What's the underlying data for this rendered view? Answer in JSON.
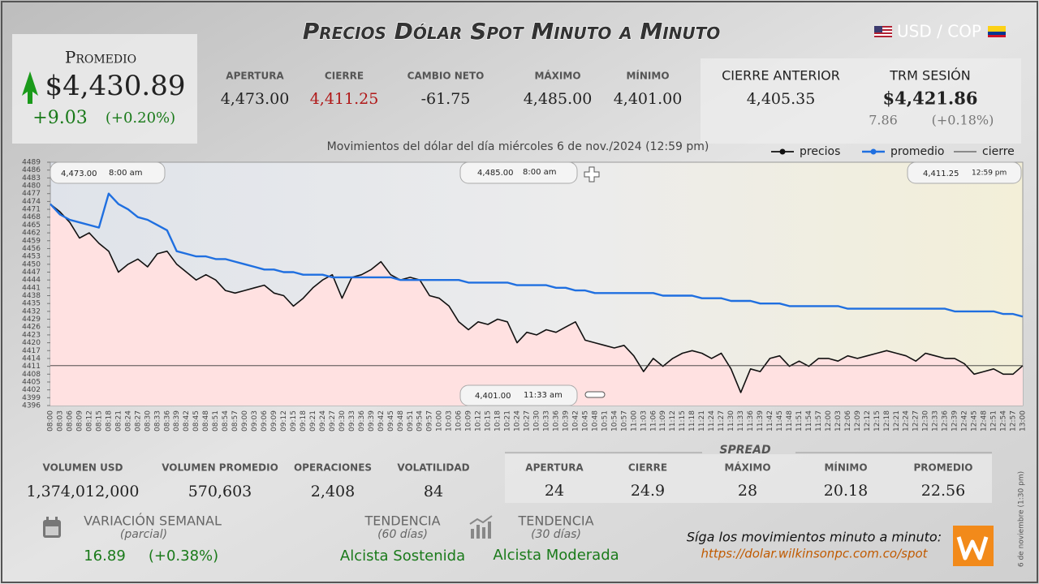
{
  "header": {
    "title": "Precios Dólar Spot Minuto a Minuto",
    "pair": "USD / COP"
  },
  "promedio": {
    "label": "Promedio",
    "value": "$4,430.89",
    "change": "+9.03",
    "change_pct": "(+0.20%)"
  },
  "stats": [
    {
      "label": "APERTURA",
      "value": "4,473.00"
    },
    {
      "label": "CIERRE",
      "value": "4,411.25"
    },
    {
      "label": "CAMBIO NETO",
      "value": "-61.75"
    },
    {
      "label": "MÁXIMO",
      "value": "4,485.00"
    },
    {
      "label": "MÍNIMO",
      "value": "4,401.00"
    }
  ],
  "previous_close": {
    "label": "CIERRE ANTERIOR",
    "value": "4,405.35"
  },
  "trm": {
    "label": "TRM SESIÓN",
    "value": "$4,421.86",
    "change": "7.86",
    "change_pct": "(+0.18%)"
  },
  "volume": [
    {
      "label": "VOLUMEN USD",
      "value": "1,374,012,000"
    },
    {
      "label": "VOLUMEN PROMEDIO",
      "value": "570,603"
    },
    {
      "label": "OPERACIONES",
      "value": "2,408"
    },
    {
      "label": "VOLATILIDAD",
      "value": "84"
    }
  ],
  "spread": {
    "title": "SPREAD",
    "items": [
      {
        "label": "APERTURA",
        "value": "24"
      },
      {
        "label": "CIERRE",
        "value": "24.9"
      },
      {
        "label": "MÁXIMO",
        "value": "28"
      },
      {
        "label": "MÍNIMO",
        "value": "20.18"
      },
      {
        "label": "PROMEDIO",
        "value": "22.56"
      }
    ]
  },
  "weekly": {
    "label": "VARIACIÓN SEMANAL",
    "sub": "(parcial)",
    "value": "16.89",
    "pct": "(+0.38%)"
  },
  "trend60": {
    "label": "TENDENCIA",
    "sub": "(60 días)",
    "value": "Alcista Sostenida"
  },
  "trend30": {
    "label": "TENDENCIA",
    "sub": "(30 días)",
    "value": "Alcista Moderada"
  },
  "footer": {
    "cta": "Síga los movimientos minuto a minuto:",
    "url": "https://dolar.wilkinsonpc.com.co/spot",
    "side": "6 de noviembre (1:30 pm)"
  },
  "chart_data": {
    "type": "line",
    "subtitle": "Movimientos del dólar del día miércoles 6 de nov./2024 (12:59 pm)",
    "categories": [
      "08:00",
      "08:03",
      "08:06",
      "08:09",
      "08:12",
      "08:15",
      "08:18",
      "08:21",
      "08:24",
      "08:27",
      "08:30",
      "08:33",
      "08:36",
      "08:39",
      "08:42",
      "08:45",
      "08:48",
      "08:51",
      "08:54",
      "08:57",
      "09:00",
      "09:03",
      "09:06",
      "09:09",
      "09:12",
      "09:15",
      "09:18",
      "09:21",
      "09:24",
      "09:27",
      "09:30",
      "09:33",
      "09:36",
      "09:39",
      "09:42",
      "09:45",
      "09:48",
      "09:51",
      "09:54",
      "09:57",
      "10:00",
      "10:03",
      "10:06",
      "10:09",
      "10:12",
      "10:15",
      "10:18",
      "10:21",
      "10:24",
      "10:27",
      "10:30",
      "10:33",
      "10:36",
      "10:39",
      "10:42",
      "10:45",
      "10:48",
      "10:51",
      "10:54",
      "10:57",
      "11:00",
      "11:03",
      "11:06",
      "11:09",
      "11:12",
      "11:15",
      "11:18",
      "11:21",
      "11:24",
      "11:27",
      "11:30",
      "11:33",
      "11:36",
      "11:39",
      "11:42",
      "11:45",
      "11:48",
      "11:51",
      "11:54",
      "11:57",
      "12:00",
      "12:03",
      "12:06",
      "12:09",
      "12:12",
      "12:15",
      "12:18",
      "12:21",
      "12:24",
      "12:27",
      "12:30",
      "12:33",
      "12:36",
      "12:39",
      "12:42",
      "12:45",
      "12:48",
      "12:51",
      "12:54",
      "12:57",
      "13:00"
    ],
    "series": [
      {
        "name": "precios",
        "color": "#111111",
        "values": [
          4473,
          4470,
          4466,
          4460,
          4462,
          4458,
          4455,
          4447,
          4450,
          4452,
          4449,
          4454,
          4455,
          4450,
          4447,
          4444,
          4446,
          4444,
          4440,
          4439,
          4440,
          4441,
          4442,
          4439,
          4438,
          4434,
          4437,
          4441,
          4444,
          4446,
          4437,
          4445,
          4446,
          4448,
          4451,
          4446,
          4444,
          4445,
          4444,
          4438,
          4437,
          4434,
          4428,
          4425,
          4428,
          4427,
          4429,
          4428,
          4420,
          4424,
          4423,
          4425,
          4424,
          4426,
          4428,
          4421,
          4420,
          4419,
          4418,
          4419,
          4415,
          4409,
          4414,
          4411,
          4414,
          4416,
          4417,
          4416,
          4414,
          4416,
          4410,
          4401,
          4410,
          4409,
          4414,
          4415,
          4411,
          4413,
          4411,
          4414,
          4414,
          4413,
          4415,
          4414,
          4415,
          4416,
          4417,
          4416,
          4415,
          4413,
          4416,
          4415,
          4414,
          4414,
          4412,
          4408,
          4409,
          4410,
          4408,
          4408,
          4411.25
        ]
      },
      {
        "name": "promedio",
        "color": "#1f6fe0",
        "values": [
          4473,
          4469,
          4467,
          4466,
          4465,
          4464,
          4477,
          4473,
          4471,
          4468,
          4467,
          4465,
          4463,
          4455,
          4454,
          4453,
          4453,
          4452,
          4452,
          4451,
          4450,
          4449,
          4448,
          4448,
          4447,
          4447,
          4446,
          4446,
          4446,
          4445,
          4445,
          4445,
          4445,
          4445,
          4445,
          4445,
          4444,
          4444,
          4444,
          4444,
          4444,
          4444,
          4444,
          4443,
          4443,
          4443,
          4443,
          4443,
          4442,
          4442,
          4442,
          4442,
          4441,
          4441,
          4440,
          4440,
          4439,
          4439,
          4439,
          4439,
          4439,
          4439,
          4439,
          4438,
          4438,
          4438,
          4438,
          4437,
          4437,
          4437,
          4436,
          4436,
          4436,
          4435,
          4435,
          4435,
          4434,
          4434,
          4434,
          4434,
          4434,
          4434,
          4433,
          4433,
          4433,
          4433,
          4433,
          4433,
          4433,
          4433,
          4433,
          4433,
          4433,
          4432,
          4432,
          4432,
          4432,
          4432,
          4431,
          4431,
          4430
        ]
      }
    ],
    "reference_line": {
      "name": "cierre",
      "value": 4411.25,
      "color": "#333333"
    },
    "ylim": [
      4396,
      4489
    ],
    "yticks": [
      4396,
      4399,
      4402,
      4405,
      4408,
      4411,
      4414,
      4417,
      4420,
      4423,
      4426,
      4429,
      4432,
      4435,
      4438,
      4441,
      4444,
      4447,
      4450,
      4453,
      4456,
      4459,
      4462,
      4465,
      4468,
      4471,
      4474,
      4477,
      4480,
      4483,
      4486,
      4489
    ],
    "area_color": "#ffe1e1",
    "annotations": [
      {
        "value_label": "4,473.00",
        "time": "8:00 am"
      },
      {
        "value_label": "4,485.00",
        "time": "8:00 am"
      },
      {
        "value_label": "4,411.25",
        "time": "12:59 pm"
      },
      {
        "value_label": "4,401.00",
        "time": "11:33 am"
      }
    ]
  }
}
